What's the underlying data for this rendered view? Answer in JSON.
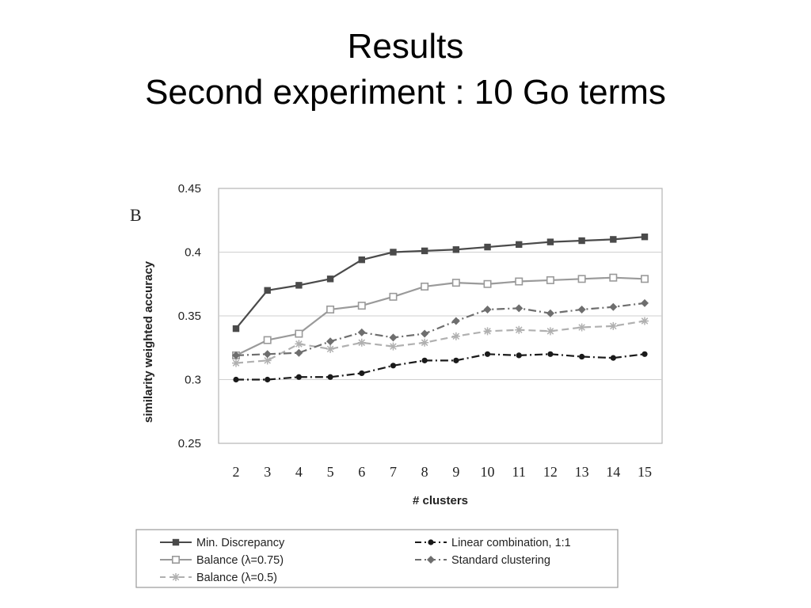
{
  "slide": {
    "title_line1": "Results",
    "title_line2": "Second experiment : 10 Go terms"
  },
  "chart_data": {
    "type": "line",
    "panel_label": "B",
    "xlabel": "# clusters",
    "ylabel": "similarity weighted accuracy",
    "x": [
      2,
      3,
      4,
      5,
      6,
      7,
      8,
      9,
      10,
      11,
      12,
      13,
      14,
      15
    ],
    "ylim": [
      0.25,
      0.45
    ],
    "yticks": [
      "0.25",
      "0.3",
      "0.35",
      "0.4",
      "0.45"
    ],
    "ytick_values": [
      0.25,
      0.3,
      0.35,
      0.4,
      0.45
    ],
    "grid": true,
    "legend_position": "bottom",
    "series": [
      {
        "name": "Min. Discrepancy",
        "marker": "filled-square",
        "line_style": "solid",
        "color": "#4a4a4a",
        "values": [
          0.34,
          0.37,
          0.374,
          0.379,
          0.394,
          0.4,
          0.401,
          0.402,
          0.404,
          0.406,
          0.408,
          0.409,
          0.41,
          0.412
        ]
      },
      {
        "name": "Balance (λ=0.75)",
        "marker": "hollow-square",
        "line_style": "solid",
        "color": "#9a9a9a",
        "values": [
          0.319,
          0.331,
          0.336,
          0.355,
          0.358,
          0.365,
          0.373,
          0.376,
          0.375,
          0.377,
          0.378,
          0.379,
          0.38,
          0.379
        ]
      },
      {
        "name": "Balance (λ=0.5)",
        "marker": "star",
        "line_style": "dashed",
        "color": "#b0b0b0",
        "values": [
          0.313,
          0.315,
          0.328,
          0.324,
          0.329,
          0.326,
          0.329,
          0.334,
          0.338,
          0.339,
          0.338,
          0.341,
          0.342,
          0.346
        ]
      },
      {
        "name": "Linear combination, 1:1",
        "marker": "dot",
        "line_style": "dash-dot",
        "color": "#1a1a1a",
        "values": [
          0.3,
          0.3,
          0.302,
          0.302,
          0.305,
          0.311,
          0.315,
          0.315,
          0.32,
          0.319,
          0.32,
          0.318,
          0.317,
          0.32
        ]
      },
      {
        "name": "Standard clustering",
        "marker": "diamond",
        "line_style": "dash-dot",
        "color": "#6e6e6e",
        "values": [
          0.319,
          0.32,
          0.321,
          0.33,
          0.337,
          0.333,
          0.336,
          0.346,
          0.355,
          0.356,
          0.352,
          0.355,
          0.357,
          0.36
        ]
      }
    ]
  }
}
